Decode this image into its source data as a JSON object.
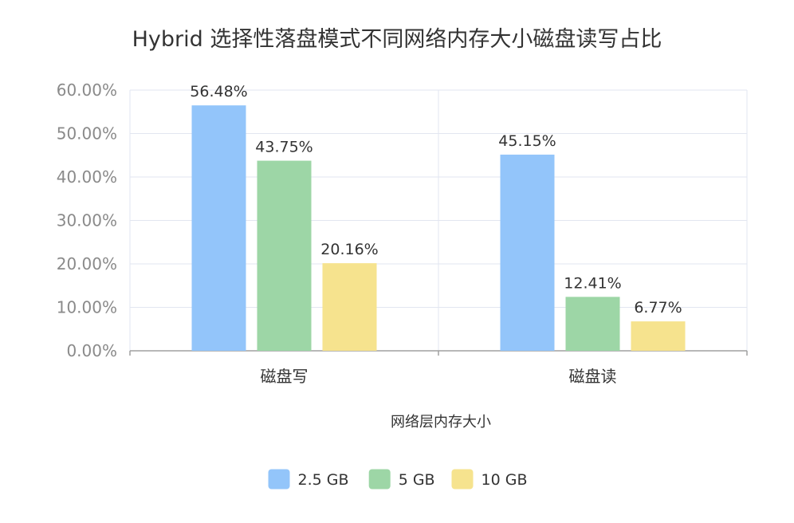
{
  "chart_data": {
    "type": "bar",
    "title": "Hybrid 选择性落盘模式不同网络内存大小磁盘读写占比",
    "xlabel": "网络层内存大小",
    "ylabel": "",
    "categories": [
      "磁盘写",
      "磁盘读"
    ],
    "series": [
      {
        "name": "2.5 GB",
        "color": "#93c5fa",
        "values": [
          56.48,
          45.15
        ],
        "labels": [
          "56.48%",
          "45.15%"
        ]
      },
      {
        "name": "5 GB",
        "color": "#9dd6a6",
        "values": [
          43.75,
          12.41
        ],
        "labels": [
          "43.75%",
          "12.41%"
        ]
      },
      {
        "name": "10 GB",
        "color": "#f6e38e",
        "values": [
          20.16,
          6.77
        ],
        "labels": [
          "20.16%",
          "6.77%"
        ]
      }
    ],
    "ylim": [
      0,
      60
    ],
    "yticks": [
      0,
      10,
      20,
      30,
      40,
      50,
      60
    ],
    "ytick_labels": [
      "0.00%",
      "10.00%",
      "20.00%",
      "30.00%",
      "40.00%",
      "50.00%",
      "60.00%"
    ],
    "grid": true,
    "legend_position": "bottom-center"
  }
}
